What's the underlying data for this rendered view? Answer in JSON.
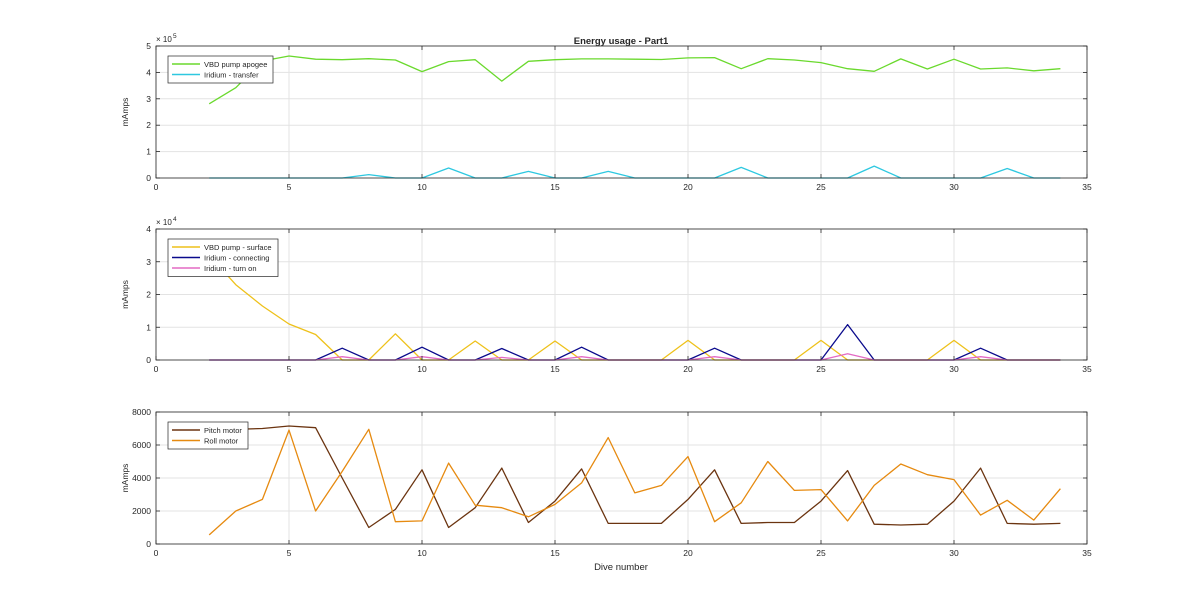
{
  "title": "Energy usage - Part1",
  "xlabel": "Dive number",
  "chart_data": [
    {
      "type": "line",
      "title": "Energy usage - Part1",
      "xlabel": "",
      "ylabel": "mAmps",
      "xlim": [
        0,
        35
      ],
      "ylim": [
        0,
        500000
      ],
      "xticks": [
        0,
        5,
        10,
        15,
        20,
        25,
        30,
        35
      ],
      "yticks": [
        0,
        100000,
        200000,
        300000,
        400000,
        500000
      ],
      "ytick_labels": [
        "0",
        "1",
        "2",
        "3",
        "4",
        "5"
      ],
      "exponent_label": "× 10",
      "exponent_power": "5",
      "grid": true,
      "legend_position": "top-left",
      "x": [
        2,
        3,
        4,
        5,
        6,
        7,
        8,
        9,
        10,
        11,
        12,
        13,
        14,
        15,
        16,
        17,
        18,
        19,
        20,
        21,
        22,
        23,
        24,
        25,
        26,
        27,
        28,
        29,
        30,
        31,
        32,
        33,
        34
      ],
      "series": [
        {
          "name": "VBD pump apogee",
          "color": "#6ad92d",
          "values": [
            281000,
            342000,
            443000,
            462000,
            450000,
            448000,
            452000,
            447000,
            403000,
            441000,
            448000,
            367000,
            442000,
            448000,
            451000,
            451000,
            450000,
            449000,
            455000,
            456000,
            414000,
            452000,
            447000,
            437000,
            414000,
            404000,
            451000,
            413000,
            450000,
            413000,
            417000,
            406000,
            414000
          ]
        },
        {
          "name": "Iridium - transfer",
          "color": "#2ec8e0",
          "values": [
            0,
            0,
            0,
            0,
            0,
            0,
            13000,
            0,
            0,
            38000,
            0,
            0,
            25000,
            0,
            0,
            25000,
            0,
            0,
            0,
            0,
            40000,
            0,
            0,
            0,
            0,
            45000,
            0,
            0,
            0,
            0,
            36000,
            0,
            0
          ]
        }
      ]
    },
    {
      "type": "line",
      "title": "",
      "xlabel": "",
      "ylabel": "mAmps",
      "xlim": [
        0,
        35
      ],
      "ylim": [
        0,
        40000
      ],
      "xticks": [
        0,
        5,
        10,
        15,
        20,
        25,
        30,
        35
      ],
      "yticks": [
        0,
        10000,
        20000,
        30000,
        40000
      ],
      "ytick_labels": [
        "0",
        "1",
        "2",
        "3",
        "4"
      ],
      "exponent_label": "× 10",
      "exponent_power": "4",
      "grid": true,
      "legend_position": "top-left",
      "x": [
        2,
        3,
        4,
        5,
        6,
        7,
        8,
        9,
        10,
        11,
        12,
        13,
        14,
        15,
        16,
        17,
        18,
        19,
        20,
        21,
        22,
        23,
        24,
        25,
        26,
        27,
        28,
        29,
        30,
        31,
        32,
        33,
        34
      ],
      "series": [
        {
          "name": "VBD pump - surface",
          "color": "#eec11a",
          "values": [
            32000,
            23000,
            16500,
            11000,
            7800,
            0,
            0,
            8000,
            0,
            0,
            5800,
            0,
            0,
            5800,
            0,
            0,
            0,
            0,
            6000,
            0,
            0,
            0,
            0,
            6000,
            0,
            0,
            0,
            0,
            6000,
            0,
            0,
            0,
            0
          ]
        },
        {
          "name": "Iridium - connecting",
          "color": "#0a0a8c",
          "values": [
            0,
            0,
            0,
            0,
            0,
            3600,
            0,
            0,
            3900,
            0,
            0,
            3500,
            0,
            0,
            3900,
            0,
            0,
            0,
            0,
            3600,
            0,
            0,
            0,
            0,
            10800,
            0,
            0,
            0,
            0,
            3600,
            0,
            0,
            0
          ]
        },
        {
          "name": "Iridium - turn on",
          "color": "#e36ac4",
          "values": [
            0,
            0,
            0,
            0,
            0,
            1000,
            0,
            0,
            1000,
            0,
            0,
            800,
            0,
            0,
            1000,
            0,
            0,
            0,
            0,
            1000,
            0,
            0,
            0,
            0,
            1900,
            0,
            0,
            0,
            0,
            1000,
            0,
            0,
            0
          ]
        }
      ]
    },
    {
      "type": "line",
      "title": "",
      "xlabel": "Dive number",
      "ylabel": "mAmps",
      "xlim": [
        0,
        35
      ],
      "ylim": [
        0,
        8000
      ],
      "xticks": [
        0,
        5,
        10,
        15,
        20,
        25,
        30,
        35
      ],
      "yticks": [
        0,
        2000,
        4000,
        6000,
        8000
      ],
      "ytick_labels": [
        "0",
        "2000",
        "4000",
        "6000",
        "8000"
      ],
      "grid": true,
      "legend_position": "top-left",
      "x": [
        2,
        3,
        4,
        5,
        6,
        7,
        8,
        9,
        10,
        11,
        12,
        13,
        14,
        15,
        16,
        17,
        18,
        19,
        20,
        21,
        22,
        23,
        24,
        25,
        26,
        27,
        28,
        29,
        30,
        31,
        32,
        33,
        34
      ],
      "series": [
        {
          "name": "Pitch motor",
          "color": "#6b3410",
          "values": [
            6900,
            6950,
            7000,
            7150,
            7050,
            4000,
            1000,
            2100,
            4500,
            1000,
            2200,
            4600,
            1300,
            2600,
            4550,
            1250,
            1250,
            1250,
            2700,
            4500,
            1250,
            1300,
            1300,
            2600,
            4450,
            1200,
            1150,
            1200,
            2600,
            4600,
            1250,
            1200,
            1250
          ]
        },
        {
          "name": "Roll motor",
          "color": "#e68a10",
          "values": [
            550,
            2000,
            2700,
            6900,
            2000,
            4400,
            6950,
            1350,
            1400,
            4900,
            2350,
            2200,
            1650,
            2400,
            3700,
            6450,
            3100,
            3550,
            5300,
            1350,
            2500,
            5000,
            3250,
            3300,
            1400,
            3550,
            4850,
            4200,
            3900,
            1750,
            2650,
            1450,
            3350
          ]
        }
      ]
    }
  ]
}
